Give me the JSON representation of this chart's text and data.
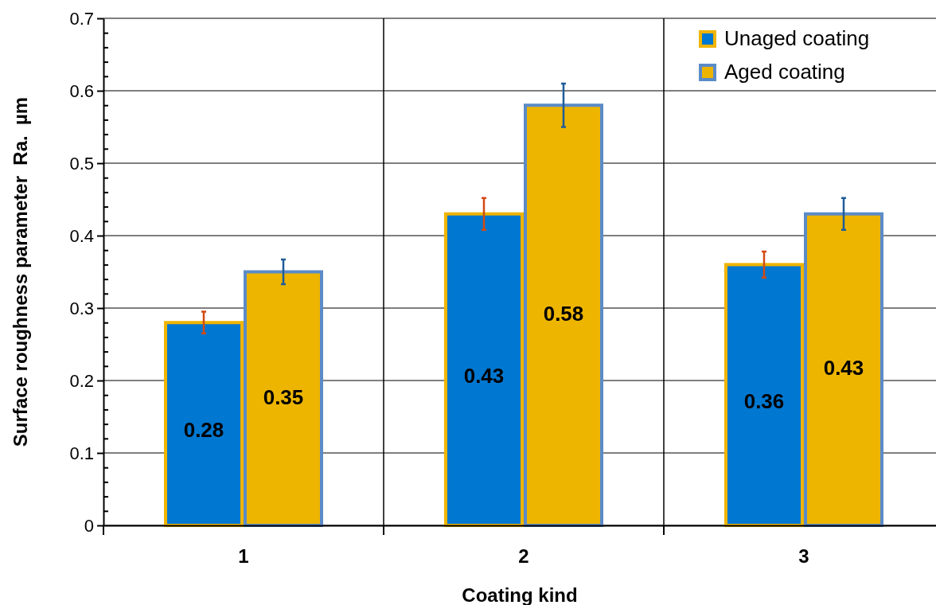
{
  "chart_data": {
    "type": "bar",
    "xlabel": "Coating kind",
    "ylabel": "Surface roughness parameter  Ra.  µm",
    "categories": [
      "1",
      "2",
      "3"
    ],
    "series": [
      {
        "name": "Unaged coating",
        "color": "#0077d0",
        "values": [
          0.28,
          0.43,
          0.36
        ],
        "errors": [
          0.015,
          0.022,
          0.018
        ]
      },
      {
        "name": "Aged coating",
        "color": "#edb500",
        "values": [
          0.35,
          0.58,
          0.43
        ],
        "errors": [
          0.017,
          0.03,
          0.022
        ]
      }
    ],
    "ylim": [
      0,
      0.7
    ],
    "yticks": [
      0,
      {
        "value": 0.02,
        "label": null
      },
      {
        "value": 0.04,
        "label": null
      },
      {
        "value": 0.06,
        "label": null
      },
      {
        "value": 0.08,
        "label": null
      },
      0.1,
      {
        "value": 0.12,
        "label": null
      },
      {
        "value": 0.14,
        "label": null
      },
      {
        "value": 0.16,
        "label": null
      },
      {
        "value": 0.18,
        "label": null
      },
      0.2,
      {
        "value": 0.22,
        "label": null
      },
      {
        "value": 0.24,
        "label": null
      },
      {
        "value": 0.26,
        "label": null
      },
      {
        "value": 0.28,
        "label": null
      },
      0.3,
      {
        "value": 0.32,
        "label": null
      },
      {
        "value": 0.34,
        "label": null
      },
      {
        "value": 0.36,
        "label": null
      },
      {
        "value": 0.38,
        "label": null
      },
      0.4,
      {
        "value": 0.42,
        "label": null
      },
      {
        "value": 0.44,
        "label": null
      },
      {
        "value": 0.46,
        "label": null
      },
      {
        "value": 0.48,
        "label": null
      },
      0.5,
      {
        "value": 0.52,
        "label": null
      },
      {
        "value": 0.54,
        "label": null
      },
      {
        "value": 0.56,
        "label": null
      },
      {
        "value": 0.58,
        "label": null
      },
      0.6,
      {
        "value": 0.62,
        "label": null
      },
      {
        "value": 0.64,
        "label": null
      },
      {
        "value": 0.66,
        "label": null
      },
      {
        "value": 0.68,
        "label": null
      },
      0.7
    ],
    "grid": true,
    "legend": "top right",
    "data_labels": true
  }
}
